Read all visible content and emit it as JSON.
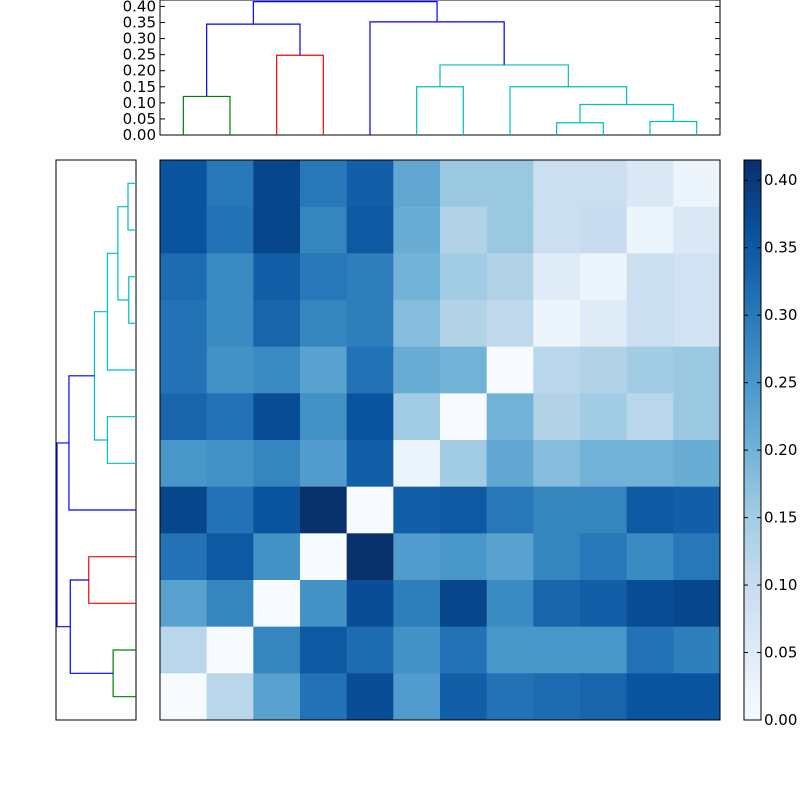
{
  "chart_data": [
    {
      "type": "dendrogram",
      "orientation": "top",
      "ylim": [
        0,
        0.42
      ],
      "yticks": [
        "0.00",
        "0.05",
        "0.10",
        "0.15",
        "0.20",
        "0.25",
        "0.30",
        "0.35",
        "0.40"
      ],
      "ytick_values": [
        0,
        0.05,
        0.1,
        0.15,
        0.2,
        0.25,
        0.3,
        0.35,
        0.4
      ],
      "leaf_count": 12,
      "links": [
        {
          "left": 0.5,
          "right": 1.5,
          "left_h": 0,
          "right_h": 0,
          "h": 0.12,
          "color": "#008000"
        },
        {
          "left": 2.5,
          "right": 3.5,
          "left_h": 0,
          "right_h": 0,
          "h": 0.248,
          "color": "#ff0000"
        },
        {
          "left": 1.0,
          "right": 3.0,
          "left_h": 0.12,
          "right_h": 0.248,
          "h": 0.345,
          "color": "#0000ff"
        },
        {
          "left": 8.5,
          "right": 9.5,
          "left_h": 0,
          "right_h": 0,
          "h": 0.038,
          "color": "#00bfbf"
        },
        {
          "left": 10.5,
          "right": 11.5,
          "left_h": 0,
          "right_h": 0,
          "h": 0.042,
          "color": "#00bfbf"
        },
        {
          "left": 9.0,
          "right": 11.0,
          "left_h": 0.038,
          "right_h": 0.042,
          "h": 0.095,
          "color": "#00bfbf"
        },
        {
          "left": 7.5,
          "right": 10.0,
          "left_h": 0,
          "right_h": 0.095,
          "h": 0.15,
          "color": "#00bfbf"
        },
        {
          "left": 5.5,
          "right": 6.5,
          "left_h": 0,
          "right_h": 0,
          "h": 0.15,
          "color": "#00bfbf"
        },
        {
          "left": 6.0,
          "right": 8.75,
          "left_h": 0.15,
          "right_h": 0.15,
          "h": 0.218,
          "color": "#00bfbf"
        },
        {
          "left": 4.5,
          "right": 7.375,
          "left_h": 0,
          "right_h": 0.218,
          "h": 0.352,
          "color": "#0000ff"
        },
        {
          "left": 2.0,
          "right": 5.9375,
          "left_h": 0.345,
          "right_h": 0.352,
          "h": 0.415,
          "color": "#0000ff"
        }
      ]
    },
    {
      "type": "dendrogram",
      "orientation": "left",
      "leaf_count": 12,
      "links": [
        {
          "top": 0.5,
          "bottom": 1.5,
          "top_d": 0,
          "bottom_d": 0,
          "d": 0.042,
          "color": "#00bfbf"
        },
        {
          "top": 2.5,
          "bottom": 3.5,
          "top_d": 0,
          "bottom_d": 0,
          "d": 0.038,
          "color": "#00bfbf"
        },
        {
          "top": 1.0,
          "bottom": 3.0,
          "top_d": 0.042,
          "bottom_d": 0.038,
          "d": 0.095,
          "color": "#00bfbf"
        },
        {
          "top": 2.0,
          "bottom": 4.5,
          "top_d": 0.095,
          "bottom_d": 0,
          "d": 0.15,
          "color": "#00bfbf"
        },
        {
          "top": 5.5,
          "bottom": 6.5,
          "top_d": 0,
          "bottom_d": 0,
          "d": 0.15,
          "color": "#00bfbf"
        },
        {
          "top": 3.25,
          "bottom": 6.0,
          "top_d": 0.15,
          "bottom_d": 0.15,
          "d": 0.218,
          "color": "#00bfbf"
        },
        {
          "top": 4.625,
          "bottom": 7.5,
          "top_d": 0.218,
          "bottom_d": 0,
          "d": 0.352,
          "color": "#0000ff"
        },
        {
          "top": 8.5,
          "bottom": 9.5,
          "top_d": 0,
          "bottom_d": 0,
          "d": 0.248,
          "color": "#ff0000"
        },
        {
          "top": 10.5,
          "bottom": 11.5,
          "top_d": 0,
          "bottom_d": 0,
          "d": 0.12,
          "color": "#008000"
        },
        {
          "top": 9.0,
          "bottom": 11.0,
          "top_d": 0.248,
          "bottom_d": 0.12,
          "d": 0.345,
          "color": "#0000ff"
        },
        {
          "top": 6.0625,
          "bottom": 10.0,
          "top_d": 0.352,
          "bottom_d": 0.345,
          "d": 0.415,
          "color": "#0000ff"
        }
      ]
    },
    {
      "type": "heatmap",
      "colormap": "Blues",
      "vmin": 0,
      "vmax": 0.415,
      "values": [
        [
          0.36,
          0.3,
          0.38,
          0.3,
          0.34,
          0.22,
          0.16,
          0.16,
          0.09,
          0.09,
          0.06,
          0.02
        ],
        [
          0.36,
          0.31,
          0.38,
          0.28,
          0.35,
          0.21,
          0.13,
          0.16,
          0.09,
          0.1,
          0.02,
          0.06
        ],
        [
          0.32,
          0.27,
          0.34,
          0.3,
          0.29,
          0.2,
          0.15,
          0.13,
          0.05,
          0.02,
          0.09,
          0.08
        ],
        [
          0.31,
          0.27,
          0.33,
          0.28,
          0.29,
          0.18,
          0.13,
          0.11,
          0.02,
          0.05,
          0.09,
          0.08
        ],
        [
          0.31,
          0.26,
          0.27,
          0.23,
          0.31,
          0.21,
          0.2,
          0.0,
          0.12,
          0.13,
          0.15,
          0.16
        ],
        [
          0.33,
          0.31,
          0.37,
          0.26,
          0.36,
          0.15,
          0.0,
          0.2,
          0.13,
          0.15,
          0.12,
          0.16
        ],
        [
          0.25,
          0.26,
          0.28,
          0.24,
          0.34,
          0.02,
          0.15,
          0.22,
          0.18,
          0.2,
          0.2,
          0.21
        ],
        [
          0.38,
          0.31,
          0.36,
          0.415,
          0.0,
          0.34,
          0.35,
          0.3,
          0.28,
          0.28,
          0.35,
          0.34
        ],
        [
          0.31,
          0.35,
          0.26,
          0.0,
          0.415,
          0.24,
          0.25,
          0.23,
          0.28,
          0.3,
          0.27,
          0.3
        ],
        [
          0.23,
          0.28,
          0.0,
          0.26,
          0.37,
          0.29,
          0.38,
          0.27,
          0.33,
          0.34,
          0.37,
          0.38
        ],
        [
          0.12,
          0.0,
          0.28,
          0.35,
          0.32,
          0.26,
          0.31,
          0.25,
          0.25,
          0.25,
          0.31,
          0.29
        ],
        [
          0.0,
          0.12,
          0.23,
          0.31,
          0.37,
          0.24,
          0.34,
          0.31,
          0.32,
          0.33,
          0.36,
          0.36
        ]
      ]
    },
    {
      "type": "colorbar",
      "colormap": "Blues",
      "range": [
        0,
        0.415
      ],
      "ticks": [
        "0.00",
        "0.05",
        "0.10",
        "0.15",
        "0.20",
        "0.25",
        "0.30",
        "0.35",
        "0.40"
      ],
      "tick_values": [
        0,
        0.05,
        0.1,
        0.15,
        0.2,
        0.25,
        0.3,
        0.35,
        0.4
      ]
    }
  ]
}
